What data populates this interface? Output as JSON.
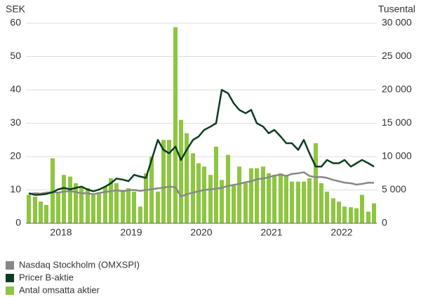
{
  "chart_data": {
    "type": "bar-line",
    "y_axis_label": "SEK",
    "y2_axis_label": "Tusental",
    "xlim": [
      2018,
      2023
    ],
    "xticks": [
      {
        "value": 2018.5,
        "label": "2018"
      },
      {
        "value": 2019.5,
        "label": "2019"
      },
      {
        "value": 2020.5,
        "label": "2020"
      },
      {
        "value": 2021.5,
        "label": "2021"
      },
      {
        "value": 2022.5,
        "label": "2022"
      }
    ],
    "ylim": [
      0,
      60
    ],
    "yticks": [
      0,
      10,
      20,
      30,
      40,
      50,
      60
    ],
    "y2lim": [
      0,
      30000
    ],
    "y2ticks": [
      0,
      {
        "value": 5000,
        "label": "5 000"
      },
      {
        "value": 10000,
        "label": "10 000"
      },
      {
        "value": 15000,
        "label": "15 000"
      },
      {
        "value": 20000,
        "label": "20 000"
      },
      {
        "value": 25000,
        "label": "25 000"
      },
      {
        "value": 30000,
        "label": "30 000"
      }
    ],
    "grid": true,
    "x": [
      2018.04,
      2018.13,
      2018.21,
      2018.29,
      2018.38,
      2018.46,
      2018.54,
      2018.63,
      2018.71,
      2018.79,
      2018.88,
      2018.96,
      2019.04,
      2019.13,
      2019.21,
      2019.29,
      2019.38,
      2019.46,
      2019.54,
      2019.63,
      2019.71,
      2019.79,
      2019.88,
      2019.96,
      2020.04,
      2020.13,
      2020.21,
      2020.29,
      2020.38,
      2020.46,
      2020.54,
      2020.63,
      2020.71,
      2020.79,
      2020.88,
      2020.96,
      2021.04,
      2021.13,
      2021.21,
      2021.29,
      2021.38,
      2021.46,
      2021.54,
      2021.63,
      2021.71,
      2021.79,
      2021.88,
      2021.96,
      2022.04,
      2022.13,
      2022.21,
      2022.29,
      2022.38,
      2022.46,
      2022.54,
      2022.63,
      2022.71,
      2022.79,
      2022.88,
      2022.96
    ],
    "series": [
      {
        "name": "Nasdaq Stockholm (OMXSPI)",
        "kind": "line",
        "color": "#888888",
        "values": [
          8.8,
          9,
          8.9,
          9.2,
          9.3,
          9.2,
          9.5,
          9.6,
          9.4,
          9,
          9,
          8.7,
          9.1,
          9.4,
          9.6,
          9.9,
          9.6,
          9.9,
          10,
          9.7,
          10,
          10.2,
          10.5,
          10.7,
          11,
          10.8,
          8,
          8.7,
          9.2,
          9.6,
          10,
          10.2,
          10.4,
          10.6,
          11.2,
          11.5,
          11.8,
          12.3,
          12.6,
          13.2,
          13.4,
          13.8,
          14.3,
          14.6,
          14.2,
          14.8,
          15,
          15.3,
          14.2,
          13.8,
          13.9,
          13.6,
          13,
          12.6,
          12.2,
          12,
          11.6,
          11.8,
          12.2,
          12.1
        ]
      },
      {
        "name": "Pricer B-aktie",
        "kind": "line",
        "color": "#0b3d20",
        "values": [
          9,
          8.5,
          8.6,
          8.8,
          9.3,
          10.2,
          10.6,
          10.2,
          10.6,
          11,
          10.1,
          9.6,
          10.1,
          11,
          12,
          13.4,
          13.1,
          12.6,
          14.5,
          14,
          13.6,
          19,
          25,
          22,
          21,
          23,
          19,
          22,
          25,
          26,
          28,
          29,
          30,
          40,
          39,
          36,
          34,
          33,
          34,
          30,
          29,
          27,
          28,
          26,
          24,
          24,
          22,
          25,
          21,
          17,
          17,
          19,
          18,
          18,
          19,
          17,
          18,
          19,
          18,
          17
        ]
      },
      {
        "name": "Antal omsatta aktier",
        "kind": "bar",
        "axis": "y2",
        "color": "#8dc63f",
        "values": [
          4250,
          4000,
          3250,
          2750,
          9750,
          4500,
          7250,
          7000,
          6000,
          5500,
          5250,
          4250,
          4500,
          5500,
          6750,
          6000,
          5000,
          5250,
          4750,
          2500,
          7500,
          10000,
          4750,
          12500,
          12500,
          29400,
          15500,
          13500,
          10500,
          9000,
          8500,
          7250,
          11500,
          6500,
          10250,
          5750,
          8500,
          6000,
          8250,
          8250,
          8500,
          7500,
          7250,
          7500,
          7250,
          6250,
          6250,
          6250,
          6750,
          12000,
          6000,
          4750,
          3750,
          3250,
          2500,
          2400,
          2250,
          4250,
          1750,
          3000
        ]
      }
    ]
  }
}
